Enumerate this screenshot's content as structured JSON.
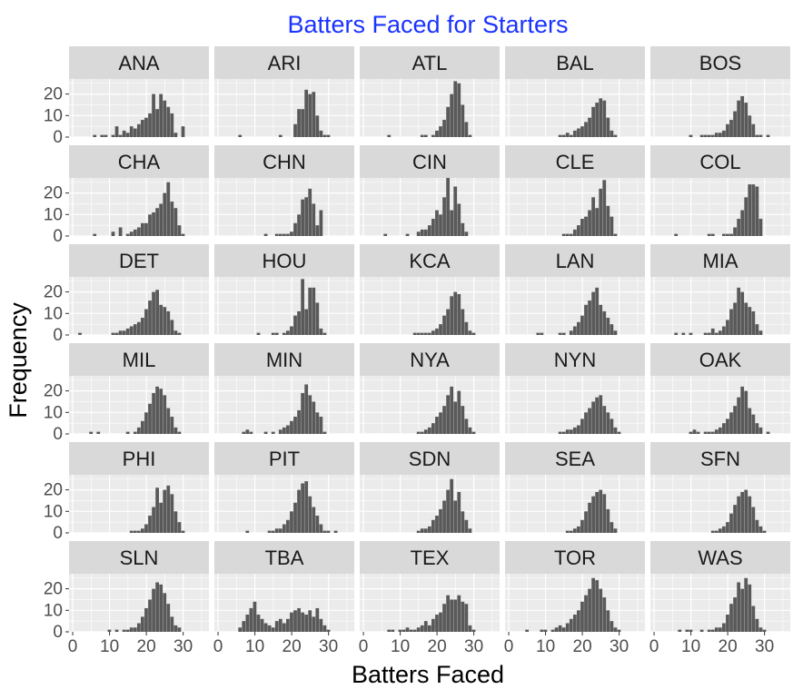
{
  "chart_data": {
    "type": "bar",
    "title": "Batters Faced for Starters",
    "xlabel": "Batters Faced",
    "ylabel": "Frequency",
    "xlim": [
      -1,
      37
    ],
    "ylim": [
      0,
      27
    ],
    "x_ticks": [
      0,
      10,
      20,
      30
    ],
    "x_tick_labels": [
      "0",
      "10",
      "20",
      "30"
    ],
    "y_ticks": [
      0,
      10,
      20
    ],
    "y_tick_labels": [
      "0",
      "10",
      "20"
    ],
    "grid": true,
    "legend": "none",
    "facet_layout": {
      "rows": 6,
      "cols": 5
    },
    "colors": {
      "bar": "#595959",
      "panel": "#ebebeb",
      "strip": "#d9d9d9",
      "grid": "#ffffff",
      "title": "#1a33ff"
    },
    "x": [
      0,
      1,
      2,
      3,
      4,
      5,
      6,
      7,
      8,
      9,
      10,
      11,
      12,
      13,
      14,
      15,
      16,
      17,
      18,
      19,
      20,
      21,
      22,
      23,
      24,
      25,
      26,
      27,
      28,
      29,
      30,
      31,
      32,
      33,
      34,
      35,
      36
    ],
    "panels": [
      {
        "name": "ANA",
        "counts": [
          0,
          0,
          0,
          0,
          0,
          0,
          1,
          0,
          1,
          1,
          0,
          1,
          5,
          1,
          3,
          2,
          5,
          4,
          6,
          8,
          9,
          11,
          20,
          13,
          20,
          17,
          14,
          11,
          2,
          0,
          5,
          0,
          0,
          0,
          0,
          0,
          0
        ]
      },
      {
        "name": "ARI",
        "counts": [
          0,
          0,
          0,
          0,
          0,
          0,
          1,
          0,
          0,
          0,
          0,
          0,
          0,
          0,
          0,
          0,
          0,
          1,
          0,
          0,
          0,
          6,
          13,
          13,
          22,
          20,
          21,
          10,
          3,
          1,
          1,
          0,
          0,
          0,
          0,
          0,
          0
        ]
      },
      {
        "name": "ATL",
        "counts": [
          0,
          0,
          0,
          0,
          0,
          0,
          0,
          1,
          0,
          0,
          0,
          0,
          0,
          0,
          0,
          0,
          1,
          1,
          0,
          1,
          3,
          5,
          8,
          14,
          20,
          26,
          25,
          15,
          7,
          1,
          0,
          0,
          0,
          0,
          0,
          0,
          0
        ]
      },
      {
        "name": "BAL",
        "counts": [
          0,
          0,
          0,
          0,
          0,
          0,
          0,
          0,
          0,
          0,
          0,
          0,
          0,
          0,
          1,
          1,
          2,
          1,
          3,
          4,
          5,
          7,
          9,
          14,
          16,
          18,
          17,
          9,
          3,
          1,
          0,
          0,
          0,
          0,
          0,
          0,
          0
        ]
      },
      {
        "name": "BOS",
        "counts": [
          0,
          0,
          0,
          0,
          0,
          0,
          0,
          0,
          0,
          0,
          1,
          0,
          0,
          1,
          1,
          1,
          1,
          2,
          2,
          3,
          6,
          8,
          12,
          17,
          19,
          16,
          10,
          6,
          1,
          1,
          0,
          1,
          0,
          0,
          0,
          0,
          0
        ]
      },
      {
        "name": "CHA",
        "counts": [
          0,
          0,
          0,
          0,
          0,
          0,
          1,
          0,
          0,
          0,
          0,
          2,
          0,
          4,
          0,
          1,
          2,
          3,
          4,
          6,
          6,
          10,
          11,
          13,
          15,
          20,
          25,
          16,
          13,
          5,
          1,
          0,
          0,
          0,
          0,
          0,
          0
        ]
      },
      {
        "name": "CHN",
        "counts": [
          0,
          0,
          0,
          0,
          0,
          0,
          0,
          0,
          0,
          0,
          0,
          0,
          0,
          1,
          0,
          0,
          1,
          1,
          1,
          1,
          2,
          6,
          10,
          17,
          18,
          22,
          15,
          5,
          12,
          0,
          0,
          0,
          0,
          0,
          0,
          0,
          0
        ]
      },
      {
        "name": "CIN",
        "counts": [
          0,
          0,
          0,
          0,
          0,
          0,
          1,
          0,
          0,
          0,
          0,
          0,
          1,
          0,
          0,
          2,
          3,
          3,
          5,
          8,
          12,
          10,
          18,
          27,
          12,
          23,
          15,
          6,
          2,
          0,
          0,
          0,
          0,
          0,
          0,
          0,
          0
        ]
      },
      {
        "name": "CLE",
        "counts": [
          0,
          0,
          0,
          0,
          0,
          0,
          0,
          0,
          0,
          0,
          0,
          0,
          0,
          0,
          0,
          1,
          1,
          1,
          3,
          5,
          8,
          9,
          12,
          18,
          13,
          22,
          26,
          14,
          9,
          1,
          0,
          0,
          0,
          0,
          0,
          0,
          0
        ]
      },
      {
        "name": "COL",
        "counts": [
          0,
          0,
          0,
          0,
          0,
          0,
          1,
          0,
          0,
          0,
          0,
          0,
          0,
          0,
          0,
          1,
          1,
          0,
          0,
          1,
          1,
          1,
          4,
          8,
          12,
          18,
          24,
          24,
          23,
          8,
          0,
          0,
          0,
          0,
          0,
          0,
          0
        ]
      },
      {
        "name": "DET",
        "counts": [
          0,
          0,
          1,
          0,
          0,
          0,
          0,
          0,
          0,
          0,
          0,
          1,
          1,
          2,
          2,
          3,
          4,
          5,
          6,
          8,
          12,
          16,
          20,
          21,
          14,
          13,
          11,
          7,
          2,
          1,
          0,
          0,
          0,
          0,
          0,
          0,
          0
        ]
      },
      {
        "name": "HOU",
        "counts": [
          0,
          0,
          0,
          0,
          0,
          0,
          0,
          0,
          0,
          0,
          0,
          1,
          0,
          0,
          0,
          1,
          1,
          0,
          1,
          2,
          4,
          9,
          11,
          26,
          12,
          22,
          22,
          15,
          3,
          1,
          0,
          0,
          0,
          0,
          0,
          0,
          0
        ]
      },
      {
        "name": "KCA",
        "counts": [
          0,
          0,
          0,
          0,
          0,
          0,
          0,
          0,
          0,
          0,
          0,
          0,
          0,
          0,
          1,
          1,
          1,
          1,
          1,
          2,
          3,
          5,
          9,
          12,
          18,
          20,
          19,
          12,
          6,
          2,
          1,
          0,
          0,
          0,
          0,
          0,
          0
        ]
      },
      {
        "name": "LAN",
        "counts": [
          0,
          0,
          0,
          0,
          0,
          0,
          0,
          0,
          1,
          1,
          0,
          0,
          0,
          0,
          1,
          1,
          0,
          2,
          4,
          6,
          9,
          14,
          16,
          20,
          22,
          14,
          11,
          8,
          5,
          2,
          0,
          0,
          0,
          0,
          0,
          0,
          0
        ]
      },
      {
        "name": "MIA",
        "counts": [
          0,
          0,
          0,
          0,
          0,
          0,
          1,
          0,
          1,
          0,
          1,
          0,
          0,
          0,
          1,
          1,
          3,
          1,
          2,
          4,
          7,
          12,
          15,
          22,
          20,
          15,
          13,
          11,
          5,
          2,
          0,
          0,
          0,
          0,
          0,
          0,
          0
        ]
      },
      {
        "name": "MIL",
        "counts": [
          0,
          0,
          0,
          0,
          0,
          1,
          0,
          1,
          0,
          0,
          0,
          0,
          0,
          0,
          0,
          1,
          0,
          1,
          3,
          6,
          10,
          14,
          19,
          22,
          21,
          18,
          12,
          8,
          3,
          1,
          0,
          0,
          0,
          0,
          0,
          0,
          0
        ]
      },
      {
        "name": "MIN",
        "counts": [
          0,
          0,
          0,
          0,
          0,
          0,
          0,
          1,
          2,
          1,
          0,
          0,
          0,
          1,
          0,
          1,
          0,
          2,
          3,
          4,
          6,
          8,
          11,
          19,
          23,
          18,
          15,
          10,
          8,
          1,
          0,
          0,
          0,
          0,
          0,
          0,
          0
        ]
      },
      {
        "name": "NYA",
        "counts": [
          0,
          0,
          0,
          0,
          0,
          0,
          0,
          0,
          0,
          0,
          0,
          0,
          0,
          0,
          0,
          1,
          1,
          2,
          3,
          5,
          8,
          10,
          13,
          18,
          22,
          15,
          20,
          13,
          7,
          3,
          1,
          0,
          0,
          0,
          0,
          0,
          0
        ]
      },
      {
        "name": "NYN",
        "counts": [
          0,
          0,
          0,
          0,
          0,
          0,
          0,
          0,
          0,
          0,
          0,
          0,
          0,
          0,
          1,
          1,
          2,
          2,
          3,
          4,
          7,
          10,
          12,
          15,
          17,
          18,
          13,
          10,
          7,
          3,
          1,
          0,
          0,
          0,
          0,
          0,
          0
        ]
      },
      {
        "name": "OAK",
        "counts": [
          0,
          0,
          0,
          0,
          0,
          0,
          0,
          0,
          0,
          0,
          1,
          2,
          1,
          0,
          1,
          1,
          1,
          2,
          3,
          5,
          7,
          10,
          13,
          17,
          22,
          20,
          12,
          9,
          5,
          3,
          0,
          1,
          0,
          0,
          0,
          0,
          0
        ]
      },
      {
        "name": "PHI",
        "counts": [
          0,
          0,
          0,
          0,
          0,
          0,
          0,
          0,
          0,
          0,
          0,
          0,
          0,
          0,
          0,
          0,
          1,
          1,
          1,
          2,
          4,
          8,
          12,
          21,
          14,
          20,
          22,
          18,
          10,
          5,
          1,
          0,
          0,
          0,
          0,
          0,
          0
        ]
      },
      {
        "name": "PIT",
        "counts": [
          0,
          0,
          0,
          0,
          0,
          0,
          0,
          0,
          1,
          0,
          0,
          0,
          0,
          0,
          1,
          1,
          2,
          2,
          4,
          6,
          10,
          14,
          20,
          23,
          24,
          17,
          12,
          8,
          4,
          1,
          1,
          0,
          1,
          0,
          0,
          0,
          0
        ]
      },
      {
        "name": "SDN",
        "counts": [
          0,
          0,
          0,
          0,
          0,
          0,
          0,
          0,
          0,
          0,
          0,
          0,
          0,
          0,
          0,
          1,
          2,
          2,
          3,
          6,
          8,
          11,
          15,
          20,
          25,
          15,
          19,
          10,
          6,
          2,
          0,
          0,
          0,
          0,
          0,
          0,
          0
        ]
      },
      {
        "name": "SEA",
        "counts": [
          0,
          0,
          0,
          0,
          0,
          0,
          0,
          0,
          0,
          0,
          0,
          0,
          0,
          0,
          0,
          0,
          1,
          1,
          2,
          3,
          6,
          10,
          14,
          17,
          19,
          20,
          18,
          11,
          5,
          2,
          0,
          0,
          0,
          0,
          0,
          0,
          0
        ]
      },
      {
        "name": "SFN",
        "counts": [
          0,
          0,
          0,
          0,
          0,
          0,
          0,
          0,
          0,
          0,
          0,
          0,
          0,
          0,
          0,
          0,
          1,
          1,
          2,
          3,
          5,
          9,
          13,
          17,
          19,
          20,
          17,
          12,
          6,
          3,
          1,
          0,
          0,
          0,
          0,
          0,
          0
        ]
      },
      {
        "name": "SLN",
        "counts": [
          0,
          0,
          0,
          0,
          0,
          0,
          0,
          0,
          0,
          0,
          1,
          0,
          1,
          0,
          1,
          1,
          2,
          2,
          4,
          7,
          11,
          15,
          20,
          23,
          22,
          18,
          13,
          7,
          3,
          2,
          0,
          0,
          0,
          0,
          0,
          0,
          0
        ]
      },
      {
        "name": "TBA",
        "counts": [
          0,
          0,
          0,
          0,
          0,
          0,
          2,
          5,
          8,
          11,
          14,
          8,
          6,
          4,
          3,
          2,
          5,
          6,
          4,
          6,
          9,
          10,
          11,
          9,
          8,
          10,
          7,
          11,
          6,
          3,
          1,
          0,
          0,
          0,
          0,
          0,
          0
        ]
      },
      {
        "name": "TEX",
        "counts": [
          0,
          0,
          0,
          0,
          0,
          0,
          0,
          1,
          1,
          0,
          1,
          1,
          2,
          1,
          1,
          2,
          3,
          5,
          3,
          6,
          8,
          9,
          13,
          17,
          15,
          15,
          17,
          14,
          13,
          3,
          1,
          0,
          0,
          0,
          0,
          0,
          0
        ]
      },
      {
        "name": "TOR",
        "counts": [
          0,
          0,
          0,
          0,
          0,
          1,
          0,
          0,
          0,
          1,
          1,
          0,
          1,
          2,
          3,
          2,
          4,
          6,
          8,
          10,
          14,
          17,
          20,
          25,
          24,
          20,
          16,
          10,
          5,
          2,
          1,
          0,
          0,
          0,
          0,
          0,
          0
        ]
      },
      {
        "name": "WAS",
        "counts": [
          0,
          0,
          0,
          0,
          0,
          0,
          0,
          1,
          0,
          1,
          1,
          0,
          0,
          1,
          0,
          1,
          1,
          2,
          2,
          4,
          8,
          13,
          16,
          23,
          20,
          25,
          22,
          12,
          6,
          2,
          1,
          0,
          0,
          0,
          0,
          0,
          0
        ]
      }
    ]
  }
}
